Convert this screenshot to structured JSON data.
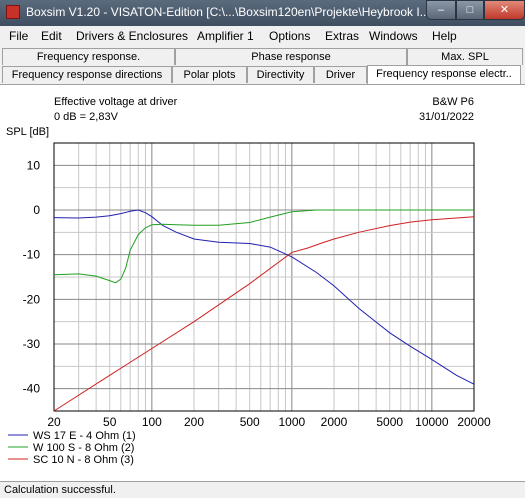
{
  "window": {
    "title": "Boxsim V1.20 - VISATON-Edition [C:\\...\\Boxsim120en\\Projekte\\Heybrook I...",
    "minimize": "–",
    "maximize": "□",
    "close": "✕"
  },
  "menu": [
    "File",
    "Edit",
    "Drivers & Enclosures",
    "Amplifier 1",
    "Options",
    "Extras",
    "Windows",
    "Help"
  ],
  "tabs_row1": [
    "Frequency response.",
    "Phase response",
    "Max. SPL"
  ],
  "tabs_row2": [
    "Frequency response directions",
    "Polar plots",
    "Directivity",
    "Driver",
    "Frequency response electr.."
  ],
  "active_tab": "Frequency response electr..",
  "plot_header": {
    "left_line1": "Effective voltage at driver",
    "left_line2": "0 dB = 2,83V",
    "right_line1": "B&W P6",
    "right_line2": "31/01/2022"
  },
  "status": "Calculation successful.",
  "chart_data": {
    "type": "line",
    "ylabel": "SPL [dB]",
    "xlabel": "",
    "x_scale": "log",
    "xlim": [
      20,
      20000
    ],
    "ylim": [
      -45,
      15
    ],
    "x_ticks": [
      20,
      50,
      100,
      200,
      500,
      1000,
      2000,
      5000,
      10000,
      20000
    ],
    "x_tick_labels": [
      "20",
      "50",
      "100",
      "200",
      "500",
      "1000",
      "2000",
      "5000",
      "10000",
      "20000"
    ],
    "y_ticks": [
      10,
      0,
      -10,
      -20,
      -30,
      -40
    ],
    "y_tick_labels": [
      "10",
      "0",
      "-10",
      "-20",
      "-30",
      "-40"
    ],
    "grid": true,
    "legend_position": "bottom-left",
    "series": [
      {
        "name": "WS 17 E - 4 Ohm  (1)",
        "color": "#2020b0",
        "x": [
          20,
          30,
          40,
          50,
          60,
          70,
          80,
          90,
          100,
          120,
          150,
          200,
          300,
          500,
          700,
          1000,
          1500,
          2000,
          3000,
          5000,
          7000,
          10000,
          15000,
          20000
        ],
        "y": [
          -1.7,
          -1.8,
          -1.6,
          -1.3,
          -0.8,
          -0.3,
          0,
          -0.6,
          -1.5,
          -3.5,
          -5,
          -6.5,
          -7.2,
          -7.5,
          -8.3,
          -10.5,
          -14,
          -17,
          -22,
          -27.5,
          -30.5,
          -33.5,
          -37,
          -39
        ]
      },
      {
        "name": "W 100 S - 8 Ohm (2)",
        "color": "#20a020",
        "x": [
          20,
          30,
          40,
          50,
          55,
          60,
          65,
          70,
          80,
          90,
          100,
          120,
          150,
          200,
          300,
          500,
          700,
          1000,
          1500,
          2000,
          5000,
          10000,
          20000
        ],
        "y": [
          -14.5,
          -14.3,
          -14.8,
          -15.8,
          -16.3,
          -15.5,
          -13,
          -9,
          -5.5,
          -4,
          -3.3,
          -3.2,
          -3.3,
          -3.4,
          -3.4,
          -2.8,
          -1.6,
          -0.4,
          0,
          0,
          0,
          0,
          0
        ]
      },
      {
        "name": "SC 10 N - 8 Ohm (3)",
        "color": "#d02020",
        "x": [
          20,
          50,
          100,
          200,
          500,
          1000,
          1300,
          1600,
          2000,
          3000,
          5000,
          7000,
          10000,
          15000,
          20000
        ],
        "y": [
          -45,
          -37,
          -31,
          -25,
          -16.5,
          -9.5,
          -8.5,
          -7.5,
          -6.5,
          -5,
          -3.5,
          -2.7,
          -2.2,
          -1.8,
          -1.5
        ]
      }
    ]
  }
}
